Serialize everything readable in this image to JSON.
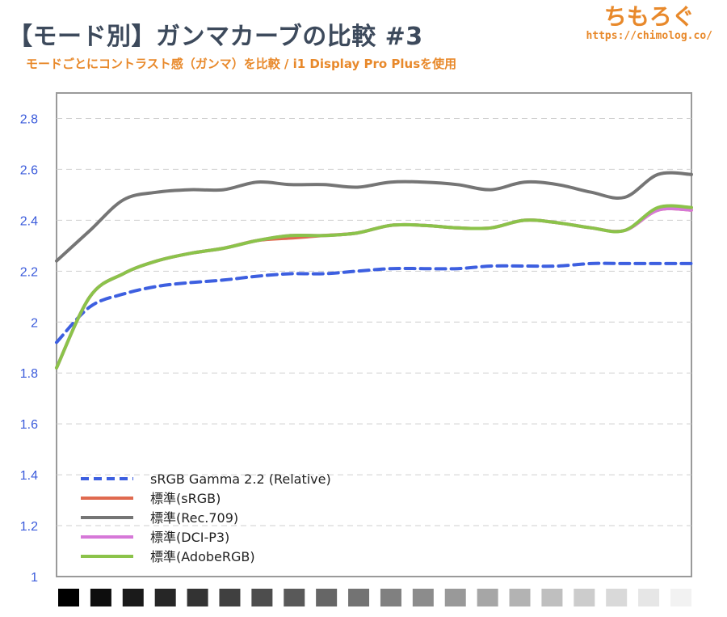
{
  "header": {
    "title": "【モード別】ガンマカーブの比較 #3",
    "subtitle": "モードごとにコントラスト感（ガンマ）を比較 / i1 Display Pro Plusを使用",
    "logo_text": "ちもろぐ",
    "logo_url": "https://chimolog.co/"
  },
  "colors": {
    "title": "#3d4a5c",
    "accent": "#e8892b",
    "ytick": "#3b5bdb",
    "grid": "#cfcfcf",
    "frame": "#9a9a9a"
  },
  "chart_data": {
    "type": "line",
    "title": "",
    "xlabel": "",
    "ylabel": "",
    "ylim": [
      1,
      2.9
    ],
    "yticks": [
      "1",
      "1.2",
      "1.4",
      "1.6",
      "1.8",
      "2",
      "2.2",
      "2.4",
      "2.6",
      "2.8"
    ],
    "grid": true,
    "legend_position": "bottom-left",
    "x": [
      5,
      10,
      15,
      20,
      25,
      30,
      35,
      40,
      45,
      50,
      55,
      60,
      65,
      70,
      75,
      80,
      85,
      90,
      95,
      100
    ],
    "series": [
      {
        "name": "sRGB Gamma 2.2 (Relative)",
        "color": "#3d5fe0",
        "style": "dashed",
        "values": [
          1.92,
          2.06,
          2.11,
          2.14,
          2.155,
          2.165,
          2.18,
          2.19,
          2.19,
          2.2,
          2.21,
          2.21,
          2.21,
          2.22,
          2.22,
          2.22,
          2.23,
          2.23,
          2.23,
          2.23
        ]
      },
      {
        "name": "標準(sRGB)",
        "color": "#e06a4f",
        "style": "solid",
        "values": [
          1.82,
          2.1,
          2.19,
          2.24,
          2.27,
          2.29,
          2.32,
          2.33,
          2.34,
          2.35,
          2.38,
          2.38,
          2.37,
          2.37,
          2.4,
          2.39,
          2.37,
          2.36,
          2.44,
          2.44
        ]
      },
      {
        "name": "標準(Rec.709)",
        "color": "#757575",
        "style": "solid",
        "values": [
          2.24,
          2.36,
          2.48,
          2.51,
          2.52,
          2.52,
          2.55,
          2.54,
          2.54,
          2.53,
          2.55,
          2.55,
          2.54,
          2.52,
          2.55,
          2.54,
          2.51,
          2.49,
          2.58,
          2.58
        ]
      },
      {
        "name": "標準(DCI-P3)",
        "color": "#d678d8",
        "style": "solid",
        "values": [
          1.82,
          2.1,
          2.19,
          2.24,
          2.27,
          2.29,
          2.32,
          2.34,
          2.34,
          2.35,
          2.38,
          2.38,
          2.37,
          2.37,
          2.4,
          2.39,
          2.37,
          2.36,
          2.44,
          2.44
        ]
      },
      {
        "name": "標準(AdobeRGB)",
        "color": "#8bc34a",
        "style": "solid",
        "values": [
          1.82,
          2.1,
          2.19,
          2.24,
          2.27,
          2.29,
          2.32,
          2.34,
          2.34,
          2.35,
          2.38,
          2.38,
          2.37,
          2.37,
          2.4,
          2.39,
          2.37,
          2.36,
          2.45,
          2.45
        ]
      }
    ],
    "gray_steps": [
      "#000000",
      "#0d0d0d",
      "#1a1a1a",
      "#262626",
      "#333333",
      "#404040",
      "#4d4d4d",
      "#595959",
      "#666666",
      "#737373",
      "#808080",
      "#8c8c8c",
      "#999999",
      "#a6a6a6",
      "#b3b3b3",
      "#bfbfbf",
      "#cccccc",
      "#d9d9d9",
      "#e6e6e6",
      "#f2f2f2"
    ]
  }
}
